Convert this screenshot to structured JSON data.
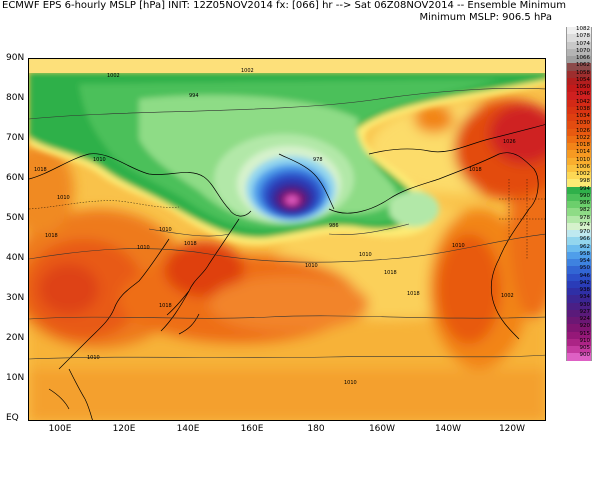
{
  "header": {
    "left": "ECMWF EPS 6-hourly MSLP [hPa] INIT: 12Z05NOV2014 fx: [066] hr --> Sat 06Z08NOV2014 -- Ensemble Minimum",
    "right_line2": "Minimum MSLP: 906.5 hPa"
  },
  "axes": {
    "lat_labels": [
      "90N",
      "80N",
      "70N",
      "60N",
      "50N",
      "40N",
      "30N",
      "20N",
      "10N",
      "EQ"
    ],
    "lon_labels": [
      "100E",
      "120E",
      "140E",
      "160E",
      "180",
      "160W",
      "140W",
      "120W"
    ]
  },
  "legend": {
    "levels": [
      "1082",
      "1078",
      "1074",
      "1070",
      "1066",
      "1062",
      "1058",
      "1054",
      "1050",
      "1046",
      "1042",
      "1038",
      "1034",
      "1030",
      "1026",
      "1022",
      "1018",
      "1014",
      "1010",
      "1006",
      "1002",
      "998",
      "994",
      "990",
      "986",
      "982",
      "978",
      "974",
      "970",
      "966",
      "962",
      "958",
      "954",
      "950",
      "946",
      "942",
      "938",
      "934",
      "930",
      "927",
      "924",
      "920",
      "915",
      "910",
      "905",
      "900"
    ],
    "colors": [
      "#efefef",
      "#dcdcdc",
      "#c8c8c8",
      "#b4b4b4",
      "#a0a0a0",
      "#8c4a4a",
      "#9e2e2e",
      "#b31e1e",
      "#c41a1a",
      "#cf2020",
      "#d42a16",
      "#da3412",
      "#df3f10",
      "#e34c10",
      "#e85a10",
      "#ee6e12",
      "#f28418",
      "#f69a22",
      "#f9ae2e",
      "#fbc23e",
      "#fdd855",
      "#fdeb74",
      "#2fb04a",
      "#4cc05a",
      "#6ccf6c",
      "#8edc86",
      "#b2e8a8",
      "#d6f2cc",
      "#bfe9f0",
      "#93d6ee",
      "#6cbcee",
      "#4f9eea",
      "#3e82e0",
      "#3266d4",
      "#2c4fc8",
      "#2a3cb8",
      "#2f2fa6",
      "#3b2694",
      "#4a1f86",
      "#5a1a7a",
      "#6c1774",
      "#801572",
      "#951878",
      "#ac2486",
      "#c53aa0",
      "#de60c4"
    ]
  },
  "map": {
    "contour_labels": [
      "1002",
      "1002",
      "994",
      "986",
      "978",
      "1018",
      "1010",
      "1010",
      "1010",
      "1010",
      "1018",
      "1018",
      "1010",
      "1018",
      "1018",
      "1018",
      "1010",
      "1010",
      "1002",
      "1010",
      "1018",
      "1026",
      "1010"
    ]
  }
}
